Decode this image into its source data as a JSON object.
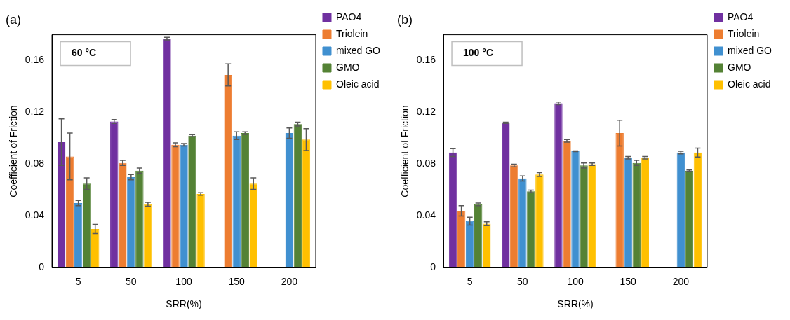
{
  "chart_data": [
    {
      "type": "bar",
      "title": "(a)",
      "xlabel": "SRR(%)",
      "ylabel": "Coefficient of Friction",
      "annotations": [
        "60 °C"
      ],
      "categories": [
        "5",
        "50",
        "100",
        "150",
        "200"
      ],
      "ylim": [
        0,
        0.18
      ],
      "yticks": [
        0,
        0.04,
        0.08,
        0.12,
        0.16
      ],
      "legend": "top right",
      "series": [
        {
          "name": "PAO4",
          "color": "#7030a0",
          "values": [
            0.097,
            0.113,
            0.177,
            null,
            null
          ],
          "errors": [
            0.018,
            0.0015,
            0.001,
            null,
            null
          ]
        },
        {
          "name": "Triolein",
          "color": "#ed7d31",
          "values": [
            0.086,
            0.081,
            0.095,
            0.149,
            null
          ],
          "errors": [
            0.018,
            0.002,
            0.0015,
            0.0085,
            null
          ]
        },
        {
          "name": "mixed GO",
          "color": "#4090d0",
          "values": [
            0.05,
            0.07,
            0.095,
            0.102,
            0.104
          ],
          "errors": [
            0.002,
            0.002,
            0.001,
            0.003,
            0.004
          ]
        },
        {
          "name": "GMO",
          "color": "#548235",
          "values": [
            0.065,
            0.075,
            0.102,
            0.104,
            0.111
          ],
          "errors": [
            0.0045,
            0.002,
            0.0008,
            0.001,
            0.0015
          ]
        },
        {
          "name": "Oleic acid",
          "color": "#ffc000",
          "values": [
            0.03,
            0.049,
            0.057,
            0.065,
            0.099
          ],
          "errors": [
            0.0035,
            0.0015,
            0.001,
            0.0045,
            0.0085
          ]
        }
      ]
    },
    {
      "type": "bar",
      "title": "(b)",
      "xlabel": "SRR(%)",
      "ylabel": "Coefficient of Friction",
      "annotations": [
        "100 °C"
      ],
      "categories": [
        "5",
        "50",
        "100",
        "150",
        "200"
      ],
      "ylim": [
        0,
        0.18
      ],
      "yticks": [
        0,
        0.04,
        0.08,
        0.12,
        0.16
      ],
      "legend": "top right",
      "series": [
        {
          "name": "PAO4",
          "color": "#7030a0",
          "values": [
            0.089,
            0.112,
            0.127,
            null,
            null
          ],
          "errors": [
            0.003,
            0.0005,
            0.001,
            null,
            null
          ]
        },
        {
          "name": "Triolein",
          "color": "#ed7d31",
          "values": [
            0.044,
            0.079,
            0.098,
            0.104,
            null
          ],
          "errors": [
            0.004,
            0.001,
            0.001,
            0.01,
            null
          ]
        },
        {
          "name": "mixed GO",
          "color": "#4090d0",
          "values": [
            0.036,
            0.069,
            0.09,
            0.085,
            0.089
          ],
          "errors": [
            0.003,
            0.002,
            0.0003,
            0.001,
            0.001
          ]
        },
        {
          "name": "GMO",
          "color": "#548235",
          "values": [
            0.049,
            0.059,
            0.079,
            0.081,
            0.075
          ],
          "errors": [
            0.001,
            0.001,
            0.002,
            0.002,
            0.0005
          ]
        },
        {
          "name": "Oleic acid",
          "color": "#ffc000",
          "values": [
            0.034,
            0.072,
            0.08,
            0.085,
            0.089
          ],
          "errors": [
            0.0015,
            0.0015,
            0.001,
            0.001,
            0.0035
          ]
        }
      ]
    }
  ]
}
